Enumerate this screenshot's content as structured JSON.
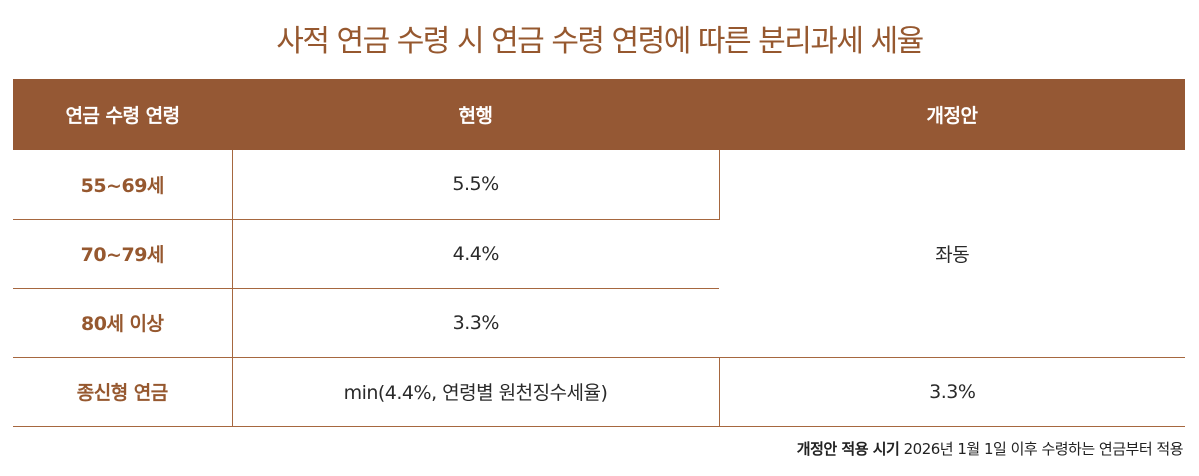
{
  "title": "사적 연금 수령 시 연금 수령 연령에 따른 분리과세 세율",
  "table": {
    "headers": [
      "연금 수령 연령",
      "현행",
      "개정안"
    ],
    "rows": [
      {
        "age": "55~69세",
        "current": "5.5%"
      },
      {
        "age": "70~79세",
        "current": "4.4%"
      },
      {
        "age": "80세 이상",
        "current": "3.3%"
      },
      {
        "age": "종신형 연금",
        "current": "min(4.4%, 연령별 원천징수세율)",
        "revised": "3.3%"
      }
    ],
    "merged_revised": "좌동"
  },
  "footer": {
    "label": "개정안 적용 시기",
    "text": "2026년 1월 1일 이후 수령하는 연금부터 적용"
  },
  "colors": {
    "accent": "#955834",
    "title": "#96582f",
    "header_text": "#ffffff"
  }
}
